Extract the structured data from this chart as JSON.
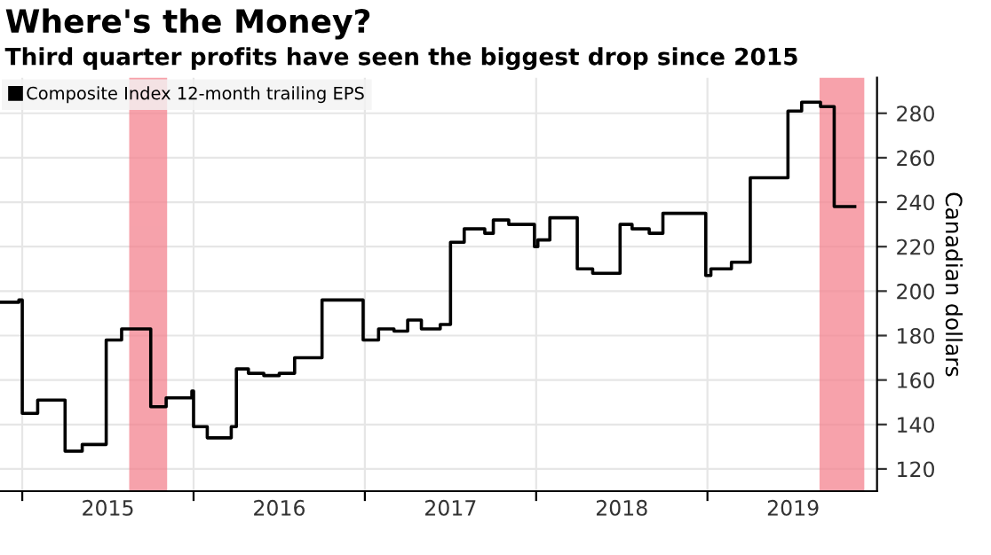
{
  "chart_data": {
    "type": "step",
    "title": "Where's the Money?",
    "subtitle": "Third quarter profits have seen the biggest drop since 2015",
    "ylabel": "Canadian dollars",
    "x": [
      2014.87,
      2014.98,
      2015.0,
      2015.09,
      2015.25,
      2015.35,
      2015.49,
      2015.58,
      2015.75,
      2015.84,
      2015.99,
      2016.0,
      2016.08,
      2016.22,
      2016.25,
      2016.32,
      2016.41,
      2016.5,
      2016.59,
      2016.75,
      2016.99,
      2017.08,
      2017.17,
      2017.25,
      2017.33,
      2017.44,
      2017.5,
      2017.58,
      2017.7,
      2017.75,
      2017.84,
      2017.99,
      2018.01,
      2018.08,
      2018.24,
      2018.33,
      2018.49,
      2018.56,
      2018.66,
      2018.74,
      2018.99,
      2019.02,
      2019.14,
      2019.25,
      2019.47,
      2019.55,
      2019.66,
      2019.74,
      2019.86
    ],
    "series": [
      {
        "name": "Composite Index 12-month trailing EPS",
        "color": "#000000",
        "values": [
          195,
          196,
          145,
          151,
          128,
          131,
          178,
          183,
          148,
          152,
          155,
          139,
          134,
          139,
          165,
          163,
          162,
          163,
          170,
          196,
          178,
          183,
          182,
          187,
          183,
          185,
          222,
          228,
          226,
          232,
          230,
          220,
          223,
          233,
          210,
          208,
          230,
          228,
          226,
          235,
          207,
          210,
          213,
          251,
          281,
          285,
          283,
          238,
          238
        ]
      }
    ],
    "xlim": [
      2014.87,
      2019.99
    ],
    "xticks": [
      {
        "value": 2015,
        "label": null
      },
      {
        "value": 2015.5,
        "label": "2015"
      },
      {
        "value": 2016,
        "label": null
      },
      {
        "value": 2016.5,
        "label": "2016"
      },
      {
        "value": 2017,
        "label": null
      },
      {
        "value": 2017.5,
        "label": "2017"
      },
      {
        "value": 2018,
        "label": null
      },
      {
        "value": 2018.5,
        "label": "2018"
      },
      {
        "value": 2019,
        "label": null
      },
      {
        "value": 2019.5,
        "label": "2019"
      }
    ],
    "ylim": [
      110,
      296
    ],
    "yticks": [
      120,
      140,
      160,
      180,
      200,
      220,
      240,
      260,
      280
    ],
    "bands": [
      {
        "axis": "x",
        "from": 2015.63,
        "to": 2015.84,
        "color": "#f4838f"
      },
      {
        "axis": "x",
        "from": 2019.66,
        "to": 2019.91,
        "color": "#f4838f"
      }
    ],
    "grid": true,
    "legend": "top left",
    "line_style": "solid",
    "marker": "none"
  }
}
